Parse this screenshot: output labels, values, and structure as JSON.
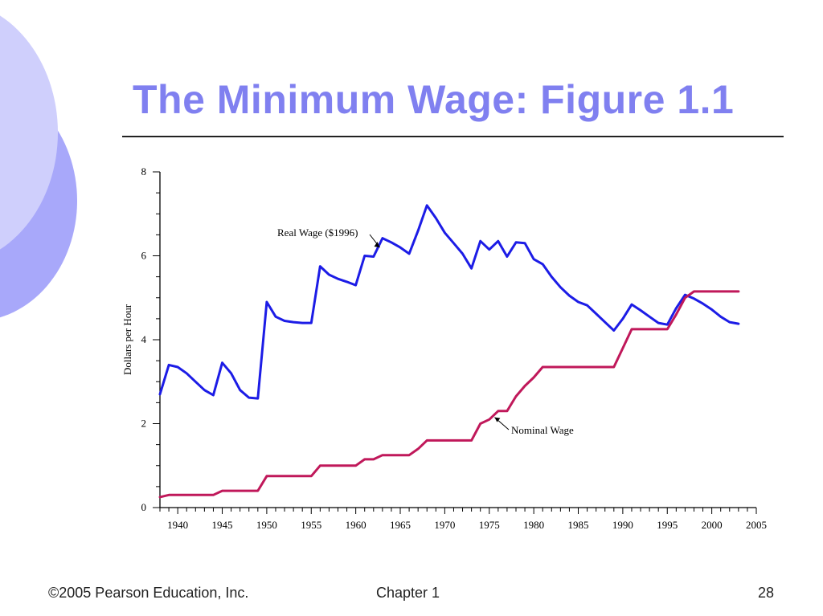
{
  "slide": {
    "title": "The Minimum Wage: Figure 1.1",
    "footer": {
      "copyright": "©2005 Pearson Education, Inc.",
      "chapter": "Chapter 1",
      "page": "28"
    }
  },
  "colors": {
    "title": "#8080f0",
    "real": "#1c1ce6",
    "nominal": "#c0185a",
    "deco_front": "#cfcffc",
    "deco_back": "#a8a8fa"
  },
  "chart_data": {
    "type": "line",
    "title": "",
    "xlabel": "",
    "ylabel": "Dollars per Hour",
    "xlim": [
      1938,
      2005
    ],
    "ylim": [
      0,
      8
    ],
    "xticks": [
      "1940",
      "1945",
      "1950",
      "1955",
      "1960",
      "1965",
      "1970",
      "1975",
      "1980",
      "1985",
      "1990",
      "1995",
      "2000",
      "2005"
    ],
    "yticks": [
      "0",
      "2",
      "4",
      "6",
      "8"
    ],
    "grid": false,
    "series": [
      {
        "name": "Real Wage ($1996)",
        "x": [
          1938,
          1939,
          1940,
          1941,
          1942,
          1943,
          1944,
          1945,
          1946,
          1947,
          1948,
          1949,
          1950,
          1951,
          1952,
          1953,
          1954,
          1955,
          1956,
          1957,
          1958,
          1959,
          1960,
          1961,
          1962,
          1963,
          1964,
          1965,
          1966,
          1967,
          1968,
          1969,
          1970,
          1971,
          1972,
          1973,
          1974,
          1975,
          1976,
          1977,
          1978,
          1979,
          1980,
          1981,
          1982,
          1983,
          1984,
          1985,
          1986,
          1987,
          1988,
          1989,
          1990,
          1991,
          1992,
          1993,
          1994,
          1995,
          1996,
          1997,
          1998,
          1999,
          2000,
          2001,
          2002,
          2003
        ],
        "values": [
          2.7,
          3.4,
          3.35,
          3.2,
          3.0,
          2.8,
          2.68,
          3.45,
          3.2,
          2.8,
          2.62,
          2.6,
          4.9,
          4.55,
          4.45,
          4.42,
          4.4,
          4.4,
          5.75,
          5.55,
          5.45,
          5.38,
          5.3,
          6.0,
          5.98,
          6.42,
          6.32,
          6.2,
          6.05,
          6.6,
          7.2,
          6.9,
          6.55,
          6.3,
          6.05,
          5.7,
          6.35,
          6.15,
          6.35,
          5.98,
          6.32,
          6.3,
          5.92,
          5.8,
          5.5,
          5.25,
          5.05,
          4.9,
          4.82,
          4.62,
          4.42,
          4.22,
          4.5,
          4.84,
          4.7,
          4.55,
          4.4,
          4.36,
          4.75,
          5.07,
          4.98,
          4.86,
          4.72,
          4.55,
          4.42,
          4.38
        ]
      },
      {
        "name": "Nominal Wage",
        "x": [
          1938,
          1939,
          1940,
          1941,
          1942,
          1943,
          1944,
          1945,
          1946,
          1947,
          1948,
          1949,
          1950,
          1951,
          1952,
          1953,
          1954,
          1955,
          1956,
          1957,
          1958,
          1959,
          1960,
          1961,
          1962,
          1963,
          1964,
          1965,
          1966,
          1967,
          1968,
          1969,
          1970,
          1971,
          1972,
          1973,
          1974,
          1975,
          1976,
          1977,
          1978,
          1979,
          1980,
          1981,
          1982,
          1983,
          1984,
          1985,
          1986,
          1987,
          1988,
          1989,
          1990,
          1991,
          1992,
          1993,
          1994,
          1995,
          1996,
          1997,
          1998,
          1999,
          2000,
          2001,
          2002,
          2003
        ],
        "values": [
          0.25,
          0.3,
          0.3,
          0.3,
          0.3,
          0.3,
          0.3,
          0.4,
          0.4,
          0.4,
          0.4,
          0.4,
          0.75,
          0.75,
          0.75,
          0.75,
          0.75,
          0.75,
          1.0,
          1.0,
          1.0,
          1.0,
          1.0,
          1.15,
          1.15,
          1.25,
          1.25,
          1.25,
          1.25,
          1.4,
          1.6,
          1.6,
          1.6,
          1.6,
          1.6,
          1.6,
          2.0,
          2.1,
          2.3,
          2.3,
          2.65,
          2.9,
          3.1,
          3.35,
          3.35,
          3.35,
          3.35,
          3.35,
          3.35,
          3.35,
          3.35,
          3.35,
          3.8,
          4.25,
          4.25,
          4.25,
          4.25,
          4.25,
          4.6,
          5.0,
          5.15,
          5.15,
          5.15,
          5.15,
          5.15,
          5.15
        ]
      }
    ],
    "annotations": [
      {
        "text": "Real Wage ($1996)",
        "series": 0,
        "x": 1963,
        "y": 6.5
      },
      {
        "text": "Nominal Wage",
        "series": 1,
        "x": 1975,
        "y": 2.05
      }
    ]
  }
}
